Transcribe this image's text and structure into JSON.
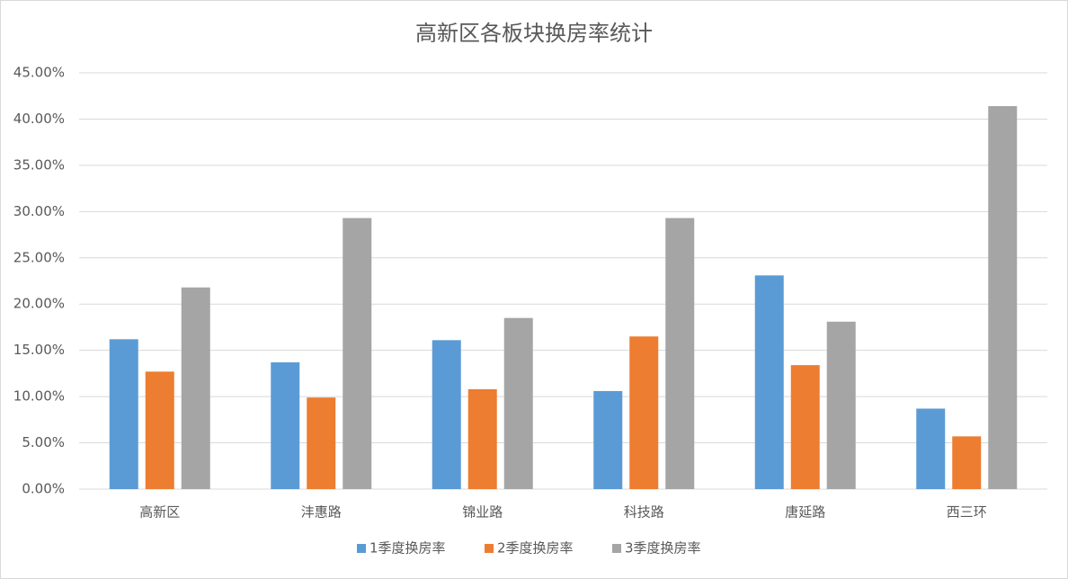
{
  "chart_data": {
    "type": "bar",
    "title": "高新区各板块换房率统计",
    "categories": [
      "高新区",
      "沣惠路",
      "锦业路",
      "科技路",
      "唐延路",
      "西三环"
    ],
    "series": [
      {
        "name": "1季度换房率",
        "color": "#5b9bd5",
        "values": [
          16.2,
          13.7,
          16.1,
          10.6,
          23.1,
          8.7
        ]
      },
      {
        "name": "2季度换房率",
        "color": "#ed7d31",
        "values": [
          12.7,
          9.9,
          10.8,
          16.5,
          13.4,
          5.7
        ]
      },
      {
        "name": "3季度换房率",
        "color": "#a5a5a5",
        "values": [
          21.8,
          29.3,
          18.5,
          29.3,
          18.1,
          41.4
        ]
      }
    ],
    "ylim": [
      0,
      45
    ],
    "yticks": [
      {
        "value": 0,
        "label": "0.00%"
      },
      {
        "value": 5,
        "label": "5.00%"
      },
      {
        "value": 10,
        "label": "10.00%"
      },
      {
        "value": 15,
        "label": "15.00%"
      },
      {
        "value": 20,
        "label": "20.00%"
      },
      {
        "value": 25,
        "label": "25.00%"
      },
      {
        "value": 30,
        "label": "30.00%"
      },
      {
        "value": 35,
        "label": "35.00%"
      },
      {
        "value": 40,
        "label": "40.00%"
      },
      {
        "value": 45,
        "label": "45.00%"
      }
    ],
    "grid": true,
    "legend": "bottom"
  }
}
